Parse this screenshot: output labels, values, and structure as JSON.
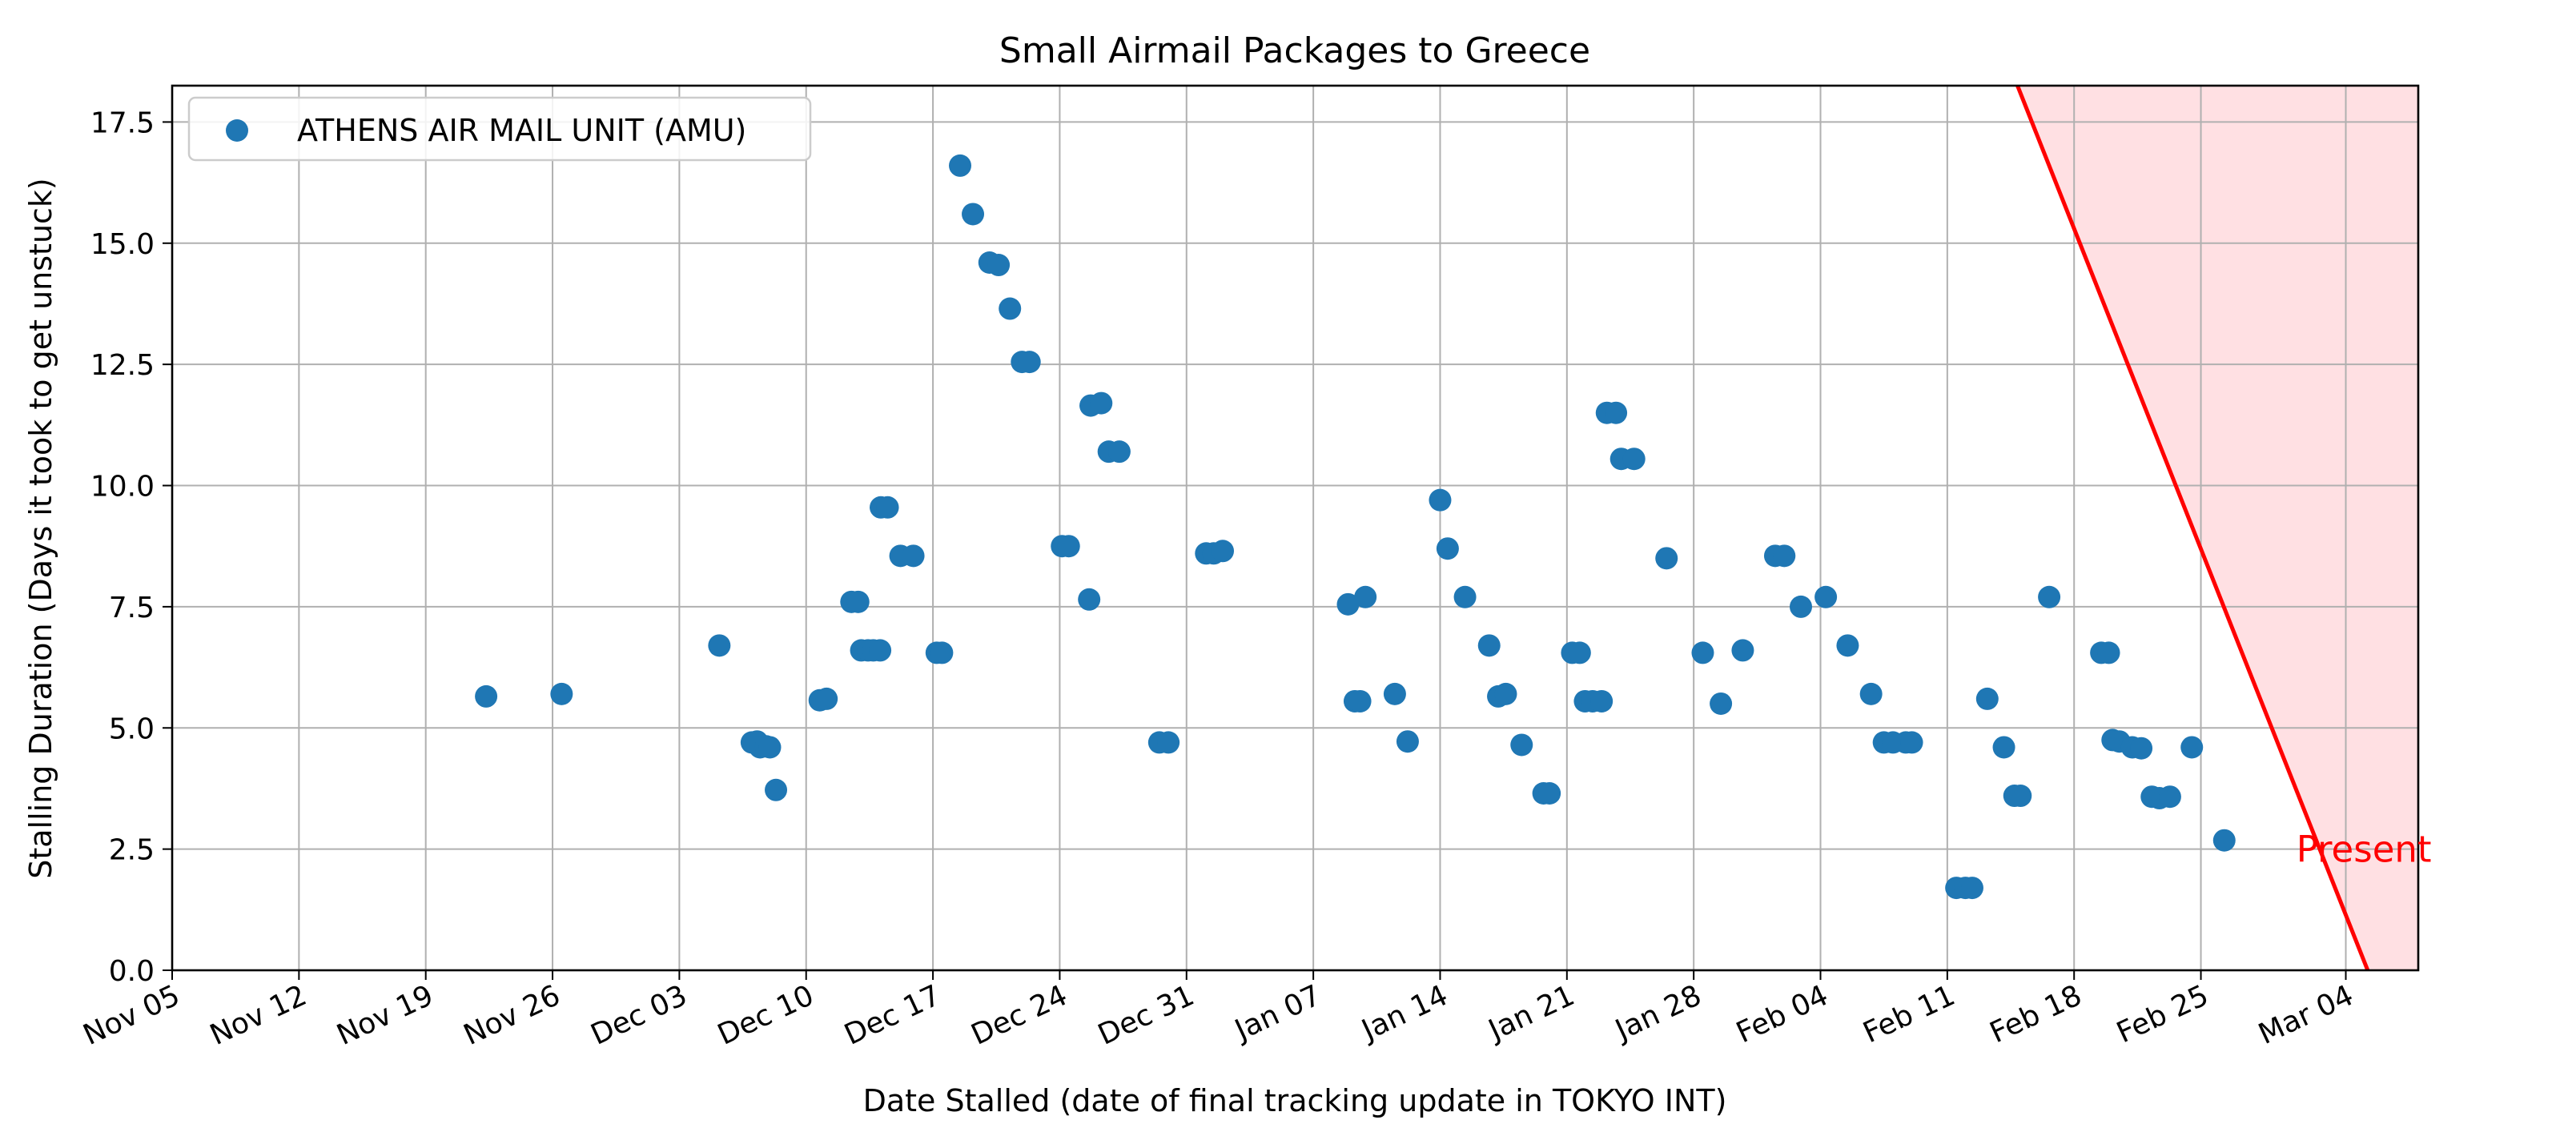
{
  "chart_data": {
    "type": "scatter",
    "title": "Small Airmail Packages to Greece",
    "xlabel": "Date Stalled (date of final tracking update in TOKYO INT)",
    "ylabel": "Stalling Duration (Days it took to get unstuck)",
    "x_axis_type": "date",
    "xlim": [
      "2023-11-05",
      "2024-03-08"
    ],
    "ylim": [
      0,
      18.25
    ],
    "grid": true,
    "legend_position": "top-left",
    "x_ticks": [
      {
        "date": "2023-11-05",
        "label": "Nov 05"
      },
      {
        "date": "2023-11-12",
        "label": "Nov 12"
      },
      {
        "date": "2023-11-19",
        "label": "Nov 19"
      },
      {
        "date": "2023-11-26",
        "label": "Nov 26"
      },
      {
        "date": "2023-12-03",
        "label": "Dec 03"
      },
      {
        "date": "2023-12-10",
        "label": "Dec 10"
      },
      {
        "date": "2023-12-17",
        "label": "Dec 17"
      },
      {
        "date": "2023-12-24",
        "label": "Dec 24"
      },
      {
        "date": "2023-12-31",
        "label": "Dec 31"
      },
      {
        "date": "2024-01-07",
        "label": "Jan 07"
      },
      {
        "date": "2024-01-14",
        "label": "Jan 14"
      },
      {
        "date": "2024-01-21",
        "label": "Jan 21"
      },
      {
        "date": "2024-01-28",
        "label": "Jan 28"
      },
      {
        "date": "2024-02-04",
        "label": "Feb 04"
      },
      {
        "date": "2024-02-11",
        "label": "Feb 11"
      },
      {
        "date": "2024-02-18",
        "label": "Feb 18"
      },
      {
        "date": "2024-02-25",
        "label": "Feb 25"
      },
      {
        "date": "2024-03-04",
        "label": "Mar 04"
      }
    ],
    "y_ticks": [
      {
        "value": 0,
        "label": "0.0"
      },
      {
        "value": 2.5,
        "label": "2.5"
      },
      {
        "value": 5,
        "label": "5.0"
      },
      {
        "value": 7.5,
        "label": "7.5"
      },
      {
        "value": 10,
        "label": "10.0"
      },
      {
        "value": 12.5,
        "label": "12.5"
      },
      {
        "value": 15,
        "label": "15.0"
      },
      {
        "value": 17.5,
        "label": "17.5"
      }
    ],
    "series": [
      {
        "name": "ATHENS AIR MAIL UNIT (AMU)",
        "color": "#1f77b4",
        "points": [
          {
            "x": "2023-11-22 08:00",
            "y": 5.65
          },
          {
            "x": "2023-11-26 12:00",
            "y": 5.7
          },
          {
            "x": "2023-12-05 05:00",
            "y": 6.7
          },
          {
            "x": "2023-12-07 00:00",
            "y": 4.7
          },
          {
            "x": "2023-12-07 07:00",
            "y": 4.72
          },
          {
            "x": "2023-12-07 11:00",
            "y": 4.6
          },
          {
            "x": "2023-12-07 19:00",
            "y": 4.62
          },
          {
            "x": "2023-12-08 00:00",
            "y": 4.6
          },
          {
            "x": "2023-12-08 08:00",
            "y": 3.72
          },
          {
            "x": "2023-12-10 18:00",
            "y": 5.57
          },
          {
            "x": "2023-12-11 03:00",
            "y": 5.6
          },
          {
            "x": "2023-12-12 12:00",
            "y": 7.6
          },
          {
            "x": "2023-12-12 21:00",
            "y": 7.6
          },
          {
            "x": "2023-12-13 01:00",
            "y": 6.6
          },
          {
            "x": "2023-12-13 10:00",
            "y": 6.6
          },
          {
            "x": "2023-12-13 17:00",
            "y": 6.6
          },
          {
            "x": "2023-12-14 02:00",
            "y": 6.6
          },
          {
            "x": "2023-12-14 03:00",
            "y": 9.55
          },
          {
            "x": "2023-12-14 12:00",
            "y": 9.55
          },
          {
            "x": "2023-12-15 05:00",
            "y": 8.55
          },
          {
            "x": "2023-12-15 22:00",
            "y": 8.55
          },
          {
            "x": "2023-12-17 05:00",
            "y": 6.55
          },
          {
            "x": "2023-12-17 12:00",
            "y": 6.55
          },
          {
            "x": "2023-12-18 12:00",
            "y": 16.6
          },
          {
            "x": "2023-12-19 05:00",
            "y": 15.6
          },
          {
            "x": "2023-12-20 03:00",
            "y": 14.6
          },
          {
            "x": "2023-12-20 15:00",
            "y": 14.55
          },
          {
            "x": "2023-12-21 06:00",
            "y": 13.65
          },
          {
            "x": "2023-12-21 22:00",
            "y": 12.55
          },
          {
            "x": "2023-12-22 08:00",
            "y": 12.55
          },
          {
            "x": "2023-12-24 03:00",
            "y": 8.75
          },
          {
            "x": "2023-12-24 12:00",
            "y": 8.75
          },
          {
            "x": "2023-12-25 15:00",
            "y": 7.65
          },
          {
            "x": "2023-12-25 17:00",
            "y": 11.65
          },
          {
            "x": "2023-12-26 07:00",
            "y": 11.7
          },
          {
            "x": "2023-12-26 17:00",
            "y": 10.7
          },
          {
            "x": "2023-12-27 07:00",
            "y": 10.7
          },
          {
            "x": "2023-12-29 12:00",
            "y": 4.7
          },
          {
            "x": "2023-12-30 00:00",
            "y": 4.7
          },
          {
            "x": "2024-01-01 02:00",
            "y": 8.6
          },
          {
            "x": "2024-01-01 12:00",
            "y": 8.6
          },
          {
            "x": "2024-01-02 00:00",
            "y": 8.65
          },
          {
            "x": "2024-01-08 22:00",
            "y": 7.55
          },
          {
            "x": "2024-01-09 07:00",
            "y": 5.55
          },
          {
            "x": "2024-01-09 14:00",
            "y": 5.55
          },
          {
            "x": "2024-01-09 21:00",
            "y": 7.7
          },
          {
            "x": "2024-01-11 12:00",
            "y": 5.7
          },
          {
            "x": "2024-01-12 05:00",
            "y": 4.72
          },
          {
            "x": "2024-01-14 00:00",
            "y": 9.7
          },
          {
            "x": "2024-01-14 10:00",
            "y": 8.7
          },
          {
            "x": "2024-01-15 09:00",
            "y": 7.7
          },
          {
            "x": "2024-01-16 17:00",
            "y": 6.7
          },
          {
            "x": "2024-01-17 05:00",
            "y": 5.65
          },
          {
            "x": "2024-01-17 15:00",
            "y": 5.7
          },
          {
            "x": "2024-01-18 12:00",
            "y": 4.65
          },
          {
            "x": "2024-01-19 17:00",
            "y": 3.65
          },
          {
            "x": "2024-01-20 01:00",
            "y": 3.65
          },
          {
            "x": "2024-01-21 07:00",
            "y": 6.55
          },
          {
            "x": "2024-01-21 17:00",
            "y": 6.55
          },
          {
            "x": "2024-01-22 00:00",
            "y": 5.55
          },
          {
            "x": "2024-01-22 10:00",
            "y": 5.55
          },
          {
            "x": "2024-01-22 22:00",
            "y": 5.55
          },
          {
            "x": "2024-01-23 05:00",
            "y": 11.5
          },
          {
            "x": "2024-01-23 17:00",
            "y": 11.5
          },
          {
            "x": "2024-01-24 00:00",
            "y": 10.55
          },
          {
            "x": "2024-01-24 17:00",
            "y": 10.55
          },
          {
            "x": "2024-01-26 12:00",
            "y": 8.5
          },
          {
            "x": "2024-01-28 12:00",
            "y": 6.55
          },
          {
            "x": "2024-01-29 12:00",
            "y": 5.5
          },
          {
            "x": "2024-01-30 17:00",
            "y": 6.6
          },
          {
            "x": "2024-02-01 12:00",
            "y": 8.55
          },
          {
            "x": "2024-02-02 00:00",
            "y": 8.55
          },
          {
            "x": "2024-02-02 22:00",
            "y": 7.5
          },
          {
            "x": "2024-02-04 07:00",
            "y": 7.7
          },
          {
            "x": "2024-02-05 12:00",
            "y": 6.7
          },
          {
            "x": "2024-02-06 19:00",
            "y": 5.7
          },
          {
            "x": "2024-02-07 12:00",
            "y": 4.7
          },
          {
            "x": "2024-02-08 00:00",
            "y": 4.7
          },
          {
            "x": "2024-02-08 17:00",
            "y": 4.7
          },
          {
            "x": "2024-02-09 01:00",
            "y": 4.7
          },
          {
            "x": "2024-02-11 12:00",
            "y": 1.7
          },
          {
            "x": "2024-02-12 00:00",
            "y": 1.7
          },
          {
            "x": "2024-02-12 09:00",
            "y": 1.7
          },
          {
            "x": "2024-02-13 05:00",
            "y": 5.6
          },
          {
            "x": "2024-02-14 03:00",
            "y": 4.6
          },
          {
            "x": "2024-02-14 17:00",
            "y": 3.6
          },
          {
            "x": "2024-02-15 01:00",
            "y": 3.6
          },
          {
            "x": "2024-02-16 15:00",
            "y": 7.7
          },
          {
            "x": "2024-02-19 12:00",
            "y": 6.55
          },
          {
            "x": "2024-02-19 22:00",
            "y": 6.55
          },
          {
            "x": "2024-02-20 03:00",
            "y": 4.75
          },
          {
            "x": "2024-02-20 12:00",
            "y": 4.72
          },
          {
            "x": "2024-02-21 05:00",
            "y": 4.6
          },
          {
            "x": "2024-02-21 17:00",
            "y": 4.58
          },
          {
            "x": "2024-02-22 07:00",
            "y": 3.58
          },
          {
            "x": "2024-02-22 17:00",
            "y": 3.55
          },
          {
            "x": "2024-02-23 07:00",
            "y": 3.58
          },
          {
            "x": "2024-02-24 12:00",
            "y": 4.6
          },
          {
            "x": "2024-02-26 07:00",
            "y": 2.68
          }
        ]
      }
    ],
    "annotation": {
      "text": "Present",
      "color": "#ff0000",
      "line_color": "#ff0000",
      "shade_color": "#ffe0e3",
      "line": [
        {
          "x": "2024-02-14 21:00",
          "y": 18.25
        },
        {
          "x": "2024-03-05 05:00",
          "y": 0
        }
      ],
      "text_anchor": {
        "x": "2024-03-05 00:00",
        "y": 2.5
      }
    }
  }
}
